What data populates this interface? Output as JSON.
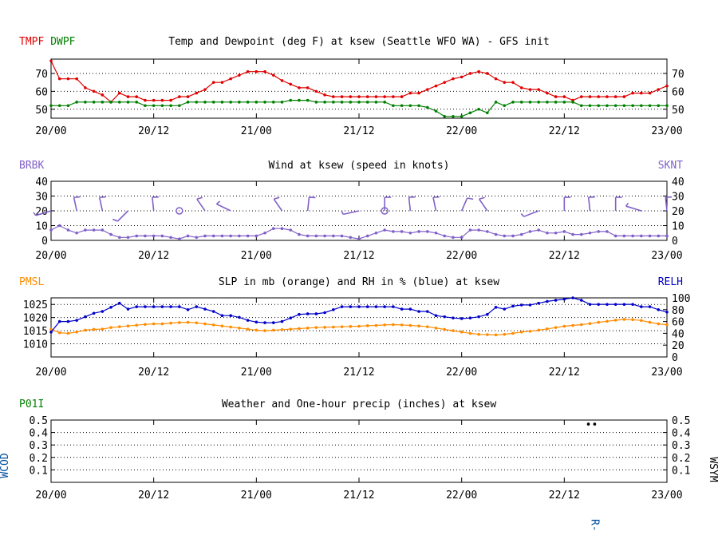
{
  "time_axis": {
    "tick_labels": [
      "20/00",
      "20/12",
      "21/00",
      "21/12",
      "22/00",
      "22/12",
      "23/00"
    ],
    "start_hour": 0,
    "end_hour": 72
  },
  "colors": {
    "red": "#e00000",
    "green": "#008000",
    "purple": "#8060c8",
    "orange": "#ff8c00",
    "blue": "#0000c8",
    "darkblue": "#0050a0",
    "black": "#000000"
  },
  "chart_data": [
    {
      "id": "temp",
      "type": "line",
      "title": "Temp and Dewpoint (deg F) at ksew  (Seattle WFO WA) - GFS init",
      "left_labels": [
        "TMPF",
        "DWPF"
      ],
      "ylim": [
        45,
        78
      ],
      "yticks": [
        50,
        60,
        70
      ],
      "grid_values": [
        50,
        60,
        70
      ],
      "x_hours": [
        0,
        1,
        2,
        3,
        4,
        5,
        6,
        7,
        8,
        9,
        10,
        11,
        12,
        13,
        14,
        15,
        16,
        17,
        18,
        19,
        20,
        21,
        22,
        23,
        24,
        25,
        26,
        27,
        28,
        29,
        30,
        31,
        32,
        33,
        34,
        35,
        36,
        37,
        38,
        39,
        40,
        41,
        42,
        43,
        44,
        45,
        46,
        47,
        48,
        49,
        50,
        51,
        52,
        53,
        54,
        55,
        56,
        57,
        58,
        59,
        60,
        61,
        62,
        63,
        64,
        65,
        66,
        67,
        68,
        69,
        70,
        71,
        72
      ],
      "series": [
        {
          "name": "TMPF",
          "color_key": "red",
          "values": [
            77,
            67,
            67,
            67,
            62,
            60,
            58,
            54,
            59,
            57,
            57,
            55,
            55,
            55,
            55,
            57,
            57,
            59,
            61,
            65,
            65,
            67,
            69,
            71,
            71,
            71,
            69,
            66,
            64,
            62,
            62,
            60,
            58,
            57,
            57,
            57,
            57,
            57,
            57,
            57,
            57,
            57,
            59,
            59,
            61,
            63,
            65,
            67,
            68,
            70,
            71,
            70,
            67,
            65,
            65,
            62,
            61,
            61,
            59,
            57,
            57,
            55,
            57,
            57,
            57,
            57,
            57,
            57,
            59,
            59,
            59,
            61,
            63
          ]
        },
        {
          "name": "DWPF",
          "color_key": "green",
          "values": [
            52,
            52,
            52,
            54,
            54,
            54,
            54,
            54,
            54,
            54,
            54,
            52,
            52,
            52,
            52,
            52,
            54,
            54,
            54,
            54,
            54,
            54,
            54,
            54,
            54,
            54,
            54,
            54,
            55,
            55,
            55,
            54,
            54,
            54,
            54,
            54,
            54,
            54,
            54,
            54,
            52,
            52,
            52,
            52,
            51,
            49,
            46,
            46,
            46,
            48,
            50,
            48,
            54,
            52,
            54,
            54,
            54,
            54,
            54,
            54,
            54,
            54,
            52,
            52,
            52,
            52,
            52,
            52,
            52,
            52,
            52,
            52,
            52
          ]
        }
      ]
    },
    {
      "id": "wind",
      "type": "line",
      "title": "Wind at  ksew  (speed in knots)",
      "left_labels": [
        "BRBK"
      ],
      "right_labels": [
        "SKNT"
      ],
      "ylim": [
        0,
        40
      ],
      "yticks": [
        0,
        10,
        20,
        30,
        40
      ],
      "grid_values": [
        10,
        20,
        30,
        40
      ],
      "x_hours": [
        0,
        1,
        2,
        3,
        4,
        5,
        6,
        7,
        8,
        9,
        10,
        11,
        12,
        13,
        14,
        15,
        16,
        17,
        18,
        19,
        20,
        21,
        22,
        23,
        24,
        25,
        26,
        27,
        28,
        29,
        30,
        31,
        32,
        33,
        34,
        35,
        36,
        37,
        38,
        39,
        40,
        41,
        42,
        43,
        44,
        45,
        46,
        47,
        48,
        49,
        50,
        51,
        52,
        53,
        54,
        55,
        56,
        57,
        58,
        59,
        60,
        61,
        62,
        63,
        64,
        65,
        66,
        67,
        68,
        69,
        70,
        71,
        72
      ],
      "series": [
        {
          "name": "SKNT",
          "color_key": "purple",
          "values": [
            7,
            10,
            7,
            5,
            7,
            7,
            7,
            4,
            2,
            2,
            3,
            3,
            3,
            3,
            2,
            1,
            3,
            2,
            3,
            3,
            3,
            3,
            3,
            3,
            3,
            5,
            8,
            8,
            7,
            4,
            3,
            3,
            3,
            3,
            3,
            2,
            1,
            3,
            5,
            7,
            6,
            6,
            5,
            6,
            6,
            5,
            3,
            2,
            2,
            7,
            7,
            6,
            4,
            3,
            3,
            4,
            6,
            7,
            5,
            5,
            6,
            4,
            4,
            5,
            6,
            6,
            3,
            3,
            3,
            3,
            3,
            3,
            3
          ]
        }
      ],
      "barbs": [
        {
          "hour": 0,
          "speed": 7,
          "dir": 250
        },
        {
          "hour": 3,
          "speed": 10,
          "dir": 350
        },
        {
          "hour": 6,
          "speed": 10,
          "dir": 350
        },
        {
          "hour": 9,
          "speed": 7,
          "dir": 220
        },
        {
          "hour": 12,
          "speed": 10,
          "dir": 355
        },
        {
          "hour": 15,
          "speed": 0,
          "dir": 0
        },
        {
          "hour": 18,
          "speed": 7,
          "dir": 330
        },
        {
          "hour": 21,
          "speed": 10,
          "dir": 300
        },
        {
          "hour": 27,
          "speed": 7,
          "dir": 330
        },
        {
          "hour": 30,
          "speed": 10,
          "dir": 5
        },
        {
          "hour": 36,
          "speed": 7,
          "dir": 255
        },
        {
          "hour": 39,
          "speed": 0,
          "dir": 0
        },
        {
          "hour": 39,
          "speed": 7,
          "dir": 0
        },
        {
          "hour": 42,
          "speed": 7,
          "dir": 355
        },
        {
          "hour": 45,
          "speed": 7,
          "dir": 350
        },
        {
          "hour": 48,
          "speed": 7,
          "dir": 20
        },
        {
          "hour": 51,
          "speed": 7,
          "dir": 330
        },
        {
          "hour": 57,
          "speed": 7,
          "dir": 245
        },
        {
          "hour": 60,
          "speed": 7,
          "dir": 0
        },
        {
          "hour": 63,
          "speed": 7,
          "dir": 355
        },
        {
          "hour": 66,
          "speed": 7,
          "dir": 0
        },
        {
          "hour": 69,
          "speed": 10,
          "dir": 290
        },
        {
          "hour": 72,
          "speed": 10,
          "dir": 355
        }
      ]
    },
    {
      "id": "slp",
      "type": "line",
      "title": "SLP in mb (orange) and RH in % (blue) at  ksew",
      "left_labels": [
        "PMSL"
      ],
      "right_labels": [
        "RELH"
      ],
      "ylim": [
        1005,
        1027.5
      ],
      "yticks": [
        1010,
        1015,
        1020,
        1025
      ],
      "right_ylim": [
        0,
        100
      ],
      "right_yticks": [
        0,
        20,
        40,
        60,
        80,
        100
      ],
      "grid_values": [
        1010,
        1015,
        1020,
        1025
      ],
      "x_hours": [
        0,
        1,
        2,
        3,
        4,
        5,
        6,
        7,
        8,
        9,
        10,
        11,
        12,
        13,
        14,
        15,
        16,
        17,
        18,
        19,
        20,
        21,
        22,
        23,
        24,
        25,
        26,
        27,
        28,
        29,
        30,
        31,
        32,
        33,
        34,
        35,
        36,
        37,
        38,
        39,
        40,
        41,
        42,
        43,
        44,
        45,
        46,
        47,
        48,
        49,
        50,
        51,
        52,
        53,
        54,
        55,
        56,
        57,
        58,
        59,
        60,
        61,
        62,
        63,
        64,
        65,
        66,
        67,
        68,
        69,
        70,
        71,
        72
      ],
      "series": [
        {
          "name": "PMSL",
          "color_key": "orange",
          "axis": "left",
          "values": [
            1015.5,
            1014.2,
            1014,
            1014.5,
            1015.2,
            1015.5,
            1015.6,
            1016.2,
            1016.5,
            1016.8,
            1017.1,
            1017.4,
            1017.6,
            1017.6,
            1017.9,
            1018.1,
            1018.2,
            1018,
            1017.6,
            1017.2,
            1016.8,
            1016.4,
            1016,
            1015.6,
            1015.2,
            1015,
            1015.2,
            1015.4,
            1015.6,
            1015.8,
            1016,
            1016.2,
            1016.3,
            1016.4,
            1016.5,
            1016.6,
            1016.7,
            1016.9,
            1017,
            1017.2,
            1017.3,
            1017.2,
            1017,
            1016.8,
            1016.5,
            1016,
            1015.5,
            1015,
            1014.5,
            1014,
            1013.6,
            1013.5,
            1013.4,
            1013.6,
            1014,
            1014.5,
            1014.8,
            1015.2,
            1015.7,
            1016.2,
            1016.7,
            1017,
            1017.3,
            1017.7,
            1018.2,
            1018.6,
            1019,
            1019.3,
            1019.2,
            1018.9,
            1018.2,
            1017.6,
            1017.3
          ]
        },
        {
          "name": "RELH",
          "color_key": "blue",
          "axis": "right",
          "values": [
            42,
            60,
            60,
            62,
            68,
            74,
            77,
            84,
            91,
            81,
            85,
            85,
            85,
            85,
            85,
            85,
            80,
            85,
            81,
            77,
            70,
            70,
            67,
            62,
            59,
            58,
            58,
            60,
            66,
            72,
            73,
            73,
            75,
            80,
            85,
            85,
            85,
            85,
            85,
            85,
            85,
            81,
            81,
            77,
            77,
            70,
            68,
            66,
            65,
            66,
            68,
            72,
            84,
            81,
            86,
            88,
            88,
            91,
            94,
            96,
            98,
            100,
            96,
            89,
            89,
            89,
            89,
            89,
            89,
            85,
            85,
            80,
            76
          ]
        }
      ]
    },
    {
      "id": "precip",
      "type": "scatter",
      "title": "Weather and One-hour precip (inches) at  ksew",
      "left_labels": [
        "P01I"
      ],
      "left_vertical_label": "WCOD",
      "right_vertical_label": "WSYM",
      "ylim": [
        0,
        0.5
      ],
      "yticks": [
        0.1,
        0.2,
        0.3,
        0.4,
        0.5
      ],
      "tick_labels_text": [
        "0.1",
        "0.2",
        "0.3",
        "0.4",
        "0.5"
      ],
      "grid_values": [
        0.1,
        0.2,
        0.3,
        0.4
      ],
      "weather_symbols": [
        {
          "hour": 63,
          "value": 0.46,
          "symbol": "••"
        }
      ],
      "weather_codes": [
        {
          "hour": 63,
          "code": "R-"
        }
      ]
    }
  ]
}
